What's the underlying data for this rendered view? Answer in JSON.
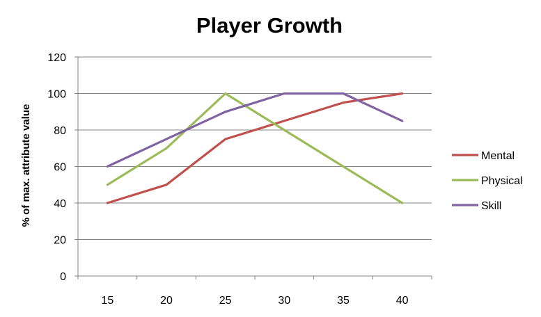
{
  "chart_data": {
    "type": "line",
    "title": "Player Growth",
    "xlabel": "",
    "ylabel": "% of max. attribute value",
    "x": [
      15,
      20,
      25,
      30,
      35,
      40
    ],
    "ylim": [
      0,
      120
    ],
    "yticks": [
      0,
      20,
      40,
      60,
      80,
      100,
      120
    ],
    "grid": true,
    "legend_position": "right",
    "series": [
      {
        "name": "Mental",
        "color": "#c0504d",
        "values": [
          40,
          50,
          75,
          85,
          95,
          100
        ]
      },
      {
        "name": "Physical",
        "color": "#9bbb59",
        "values": [
          50,
          70,
          100,
          80,
          60,
          40
        ]
      },
      {
        "name": "Skill",
        "color": "#8064a2",
        "values": [
          60,
          75,
          90,
          100,
          100,
          85
        ]
      }
    ]
  }
}
